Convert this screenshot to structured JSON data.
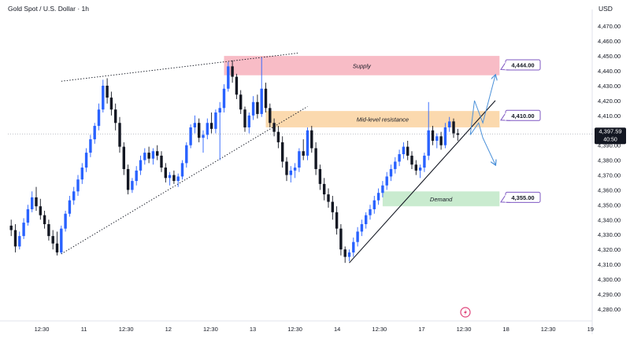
{
  "header": {
    "symbol": "Gold Spot / U.S. Dollar · 1h",
    "currency": "USD"
  },
  "chart_data": {
    "type": "candlestick",
    "y_axis": {
      "ticks": [
        4280,
        4290,
        4300,
        4310,
        4320,
        4330,
        4340,
        4350,
        4360,
        4370,
        4380,
        4390,
        4400,
        4410,
        4420,
        4430,
        4440,
        4450,
        4460,
        4470
      ],
      "tick_labels": [
        "4,280.00",
        "4,290.00",
        "4,300.00",
        "4,310.00",
        "4,320.00",
        "4,330.00",
        "4,340.00",
        "4,350.00",
        "4,360.00",
        "4,370.00",
        "4,380.00",
        "4,390.00",
        "4,400.00",
        "4,410.00",
        "4,420.00",
        "4,430.00",
        "4,440.00",
        "4,450.00",
        "4,460.00",
        "4,470.00"
      ],
      "range": [
        4272,
        4477
      ]
    },
    "x_axis": {
      "labels": [
        "12:30",
        "11",
        "12:30",
        "12",
        "12:30",
        "13",
        "12:30",
        "14",
        "12:30",
        "17",
        "12:30",
        "18",
        "12:30",
        "19"
      ],
      "range": [
        0,
        136
      ]
    },
    "current_price": {
      "price_label": "4,397.59",
      "countdown": "40:50",
      "value": 4397.59,
      "color": "#131722"
    },
    "zones": [
      {
        "label": "Supply",
        "top": 4450,
        "bottom": 4437,
        "x0": 51,
        "x1": 117,
        "color": "#f8bcc6"
      },
      {
        "label": "Mid-level resistance",
        "top": 4413,
        "bottom": 4402,
        "x0": 61,
        "x1": 117,
        "color": "#fbd9ae"
      },
      {
        "label": "Demand",
        "top": 4359,
        "bottom": 4349,
        "x0": 89,
        "x1": 117,
        "color": "#c9ebcf"
      }
    ],
    "level_tags": [
      {
        "label": "4,444.00",
        "value": 4444
      },
      {
        "label": "4,410.00",
        "value": 4410
      },
      {
        "label": "4,355.00",
        "value": 4355
      }
    ],
    "trendlines": [
      {
        "style": "dotted",
        "from": [
          12,
          4433
        ],
        "to": [
          69,
          4452
        ]
      },
      {
        "style": "dotted",
        "from": [
          12,
          4317
        ],
        "to": [
          71,
          4416
        ]
      },
      {
        "style": "solid",
        "from": [
          81,
          4311
        ],
        "to": [
          116,
          4420
        ]
      }
    ],
    "projection_arrows": [
      {
        "points": [
          [
            110,
            4397
          ],
          [
            111,
            4420
          ],
          [
            113,
            4405
          ],
          [
            116,
            4437
          ]
        ],
        "color": "#4a90d9"
      },
      {
        "points": [
          [
            110,
            4397
          ],
          [
            112,
            4405
          ],
          [
            113,
            4395
          ],
          [
            116,
            4377
          ]
        ],
        "color": "#4a90d9"
      }
    ],
    "colors": {
      "up": "#2962ff",
      "down": "#131722"
    },
    "candles": [
      [
        4336,
        4340,
        4329,
        4333
      ],
      [
        4333,
        4337,
        4318,
        4322
      ],
      [
        4322,
        4332,
        4320,
        4329
      ],
      [
        4329,
        4341,
        4327,
        4338
      ],
      [
        4338,
        4350,
        4336,
        4347
      ],
      [
        4347,
        4359,
        4345,
        4355
      ],
      [
        4355,
        4362,
        4346,
        4349
      ],
      [
        4349,
        4354,
        4340,
        4343
      ],
      [
        4343,
        4346,
        4334,
        4337
      ],
      [
        4337,
        4340,
        4326,
        4329
      ],
      [
        4329,
        4333,
        4320,
        4324
      ],
      [
        4324,
        4332,
        4316,
        4318
      ],
      [
        4318,
        4336,
        4317,
        4334
      ],
      [
        4334,
        4346,
        4332,
        4344
      ],
      [
        4344,
        4356,
        4342,
        4353
      ],
      [
        4353,
        4362,
        4350,
        4359
      ],
      [
        4359,
        4370,
        4356,
        4367
      ],
      [
        4367,
        4378,
        4364,
        4375
      ],
      [
        4375,
        4388,
        4372,
        4385
      ],
      [
        4385,
        4397,
        4382,
        4394
      ],
      [
        4394,
        4405,
        4391,
        4403
      ],
      [
        4403,
        4418,
        4400,
        4414
      ],
      [
        4414,
        4434,
        4412,
        4430
      ],
      [
        4430,
        4435,
        4418,
        4422
      ],
      [
        4422,
        4426,
        4410,
        4414
      ],
      [
        4414,
        4418,
        4400,
        4405
      ],
      [
        4405,
        4409,
        4385,
        4389
      ],
      [
        4389,
        4392,
        4370,
        4374
      ],
      [
        4374,
        4377,
        4357,
        4360
      ],
      [
        4360,
        4368,
        4358,
        4366
      ],
      [
        4366,
        4376,
        4363,
        4373
      ],
      [
        4373,
        4383,
        4370,
        4380
      ],
      [
        4380,
        4388,
        4377,
        4385
      ],
      [
        4385,
        4389,
        4378,
        4381
      ],
      [
        4381,
        4388,
        4377,
        4386
      ],
      [
        4386,
        4390,
        4380,
        4383
      ],
      [
        4383,
        4386,
        4372,
        4375
      ],
      [
        4375,
        4378,
        4365,
        4368
      ],
      [
        4368,
        4372,
        4363,
        4370
      ],
      [
        4370,
        4373,
        4364,
        4366
      ],
      [
        4366,
        4371,
        4362,
        4369
      ],
      [
        4369,
        4380,
        4367,
        4378
      ],
      [
        4378,
        4392,
        4375,
        4390
      ],
      [
        4390,
        4404,
        4388,
        4402
      ],
      [
        4402,
        4410,
        4398,
        4405
      ],
      [
        4405,
        4408,
        4392,
        4395
      ],
      [
        4395,
        4400,
        4385,
        4397
      ],
      [
        4397,
        4408,
        4394,
        4405
      ],
      [
        4405,
        4412,
        4398,
        4401
      ],
      [
        4401,
        4414,
        4398,
        4412
      ],
      [
        4412,
        4419,
        4380,
        4415
      ],
      [
        4415,
        4431,
        4412,
        4428
      ],
      [
        4428,
        4446,
        4426,
        4443
      ],
      [
        4443,
        4447,
        4432,
        4436
      ],
      [
        4436,
        4438,
        4421,
        4424
      ],
      [
        4424,
        4427,
        4411,
        4414
      ],
      [
        4414,
        4416,
        4399,
        4402
      ],
      [
        4402,
        4412,
        4398,
        4410
      ],
      [
        4410,
        4423,
        4407,
        4419
      ],
      [
        4419,
        4424,
        4408,
        4411
      ],
      [
        4411,
        4449,
        4409,
        4428
      ],
      [
        4428,
        4432,
        4412,
        4415
      ],
      [
        4415,
        4418,
        4402,
        4405
      ],
      [
        4405,
        4408,
        4396,
        4399
      ],
      [
        4399,
        4403,
        4388,
        4392
      ],
      [
        4392,
        4396,
        4375,
        4379
      ],
      [
        4379,
        4382,
        4366,
        4370
      ],
      [
        4370,
        4376,
        4365,
        4373
      ],
      [
        4373,
        4378,
        4368,
        4375
      ],
      [
        4375,
        4388,
        4372,
        4386
      ],
      [
        4386,
        4394,
        4380,
        4383
      ],
      [
        4383,
        4402,
        4380,
        4400
      ],
      [
        4400,
        4403,
        4385,
        4388
      ],
      [
        4388,
        4392,
        4370,
        4374
      ],
      [
        4374,
        4377,
        4360,
        4364
      ],
      [
        4364,
        4368,
        4353,
        4357
      ],
      [
        4357,
        4361,
        4348,
        4352
      ],
      [
        4352,
        4356,
        4340,
        4345
      ],
      [
        4345,
        4349,
        4330,
        4334
      ],
      [
        4334,
        4337,
        4316,
        4320
      ],
      [
        4320,
        4322,
        4311,
        4315
      ],
      [
        4315,
        4320,
        4312,
        4318
      ],
      [
        4318,
        4328,
        4315,
        4325
      ],
      [
        4325,
        4335,
        4322,
        4332
      ],
      [
        4332,
        4340,
        4329,
        4337
      ],
      [
        4337,
        4345,
        4334,
        4343
      ],
      [
        4343,
        4350,
        4340,
        4347
      ],
      [
        4347,
        4356,
        4344,
        4353
      ],
      [
        4353,
        4361,
        4350,
        4358
      ],
      [
        4358,
        4366,
        4355,
        4363
      ],
      [
        4363,
        4372,
        4360,
        4369
      ],
      [
        4369,
        4377,
        4366,
        4374
      ],
      [
        4374,
        4382,
        4371,
        4379
      ],
      [
        4379,
        4387,
        4376,
        4384
      ],
      [
        4384,
        4392,
        4381,
        4389
      ],
      [
        4389,
        4393,
        4380,
        4383
      ],
      [
        4383,
        4386,
        4374,
        4377
      ],
      [
        4377,
        4380,
        4370,
        4373
      ],
      [
        4373,
        4377,
        4368,
        4375
      ],
      [
        4375,
        4385,
        4372,
        4383
      ],
      [
        4383,
        4419,
        4380,
        4400
      ],
      [
        4400,
        4403,
        4390,
        4393
      ],
      [
        4393,
        4398,
        4388,
        4396
      ],
      [
        4396,
        4399,
        4387,
        4390
      ],
      [
        4390,
        4405,
        4388,
        4402
      ],
      [
        4402,
        4409,
        4399,
        4406
      ],
      [
        4406,
        4408,
        4395,
        4398
      ],
      [
        4398,
        4401,
        4393,
        4397
      ]
    ]
  }
}
